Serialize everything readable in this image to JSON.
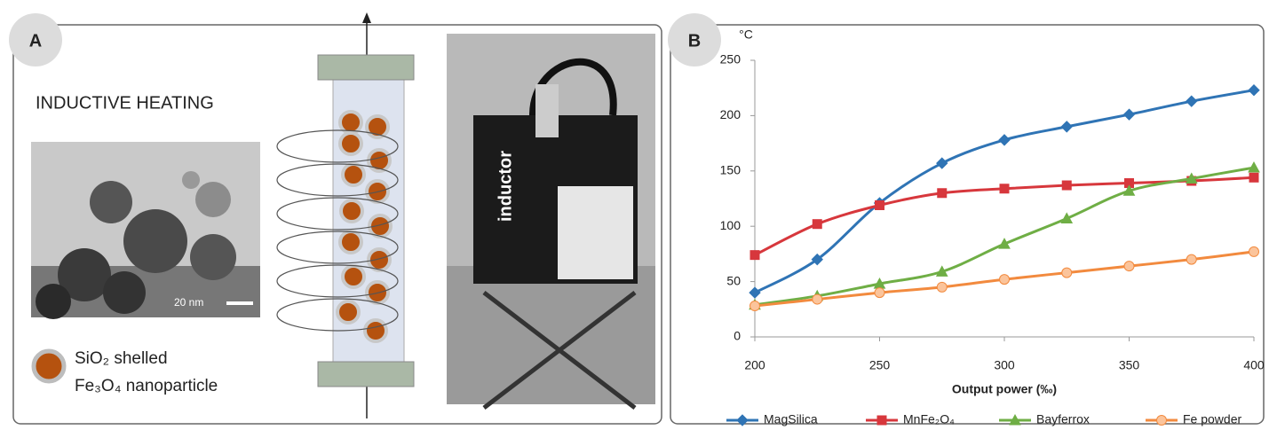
{
  "panel_a": {
    "label": "A",
    "heading": "INDUCTIVE HEATING",
    "scale_bar": "20 nm",
    "legend_line1": "SiO₂ shelled",
    "legend_line2": "Fe₃O₄ nanoparticle",
    "device_label": "inductor"
  },
  "chart_data": {
    "type": "line",
    "panel_label": "B",
    "ylabel": "°C",
    "xlabel": "Output power (‰)",
    "x": [
      200,
      225,
      250,
      275,
      300,
      325,
      350,
      375,
      400
    ],
    "series": [
      {
        "name": "MagSilica",
        "color": "#2f74b5",
        "marker": "diamond",
        "values": [
          40,
          70,
          121,
          157,
          178,
          190,
          201,
          213,
          223
        ]
      },
      {
        "name": "MnFe₂O₄",
        "color": "#d7373c",
        "marker": "square",
        "values": [
          74,
          102,
          119,
          130,
          134,
          137,
          139,
          141,
          144
        ]
      },
      {
        "name": "Bayferrox",
        "color": "#6fae45",
        "marker": "triangle",
        "values": [
          29,
          37,
          48,
          59,
          84,
          107,
          132,
          143,
          153
        ]
      },
      {
        "name": "Fe powder",
        "color": "#f28a3e",
        "marker": "circle",
        "values": [
          28,
          34,
          40,
          45,
          52,
          58,
          64,
          70,
          77
        ]
      }
    ],
    "xlim": [
      200,
      400
    ],
    "xticks": [
      200,
      250,
      300,
      350,
      400
    ],
    "ylim": [
      0,
      250
    ],
    "yticks": [
      0,
      50,
      100,
      150,
      200,
      250
    ],
    "smooth": true
  }
}
